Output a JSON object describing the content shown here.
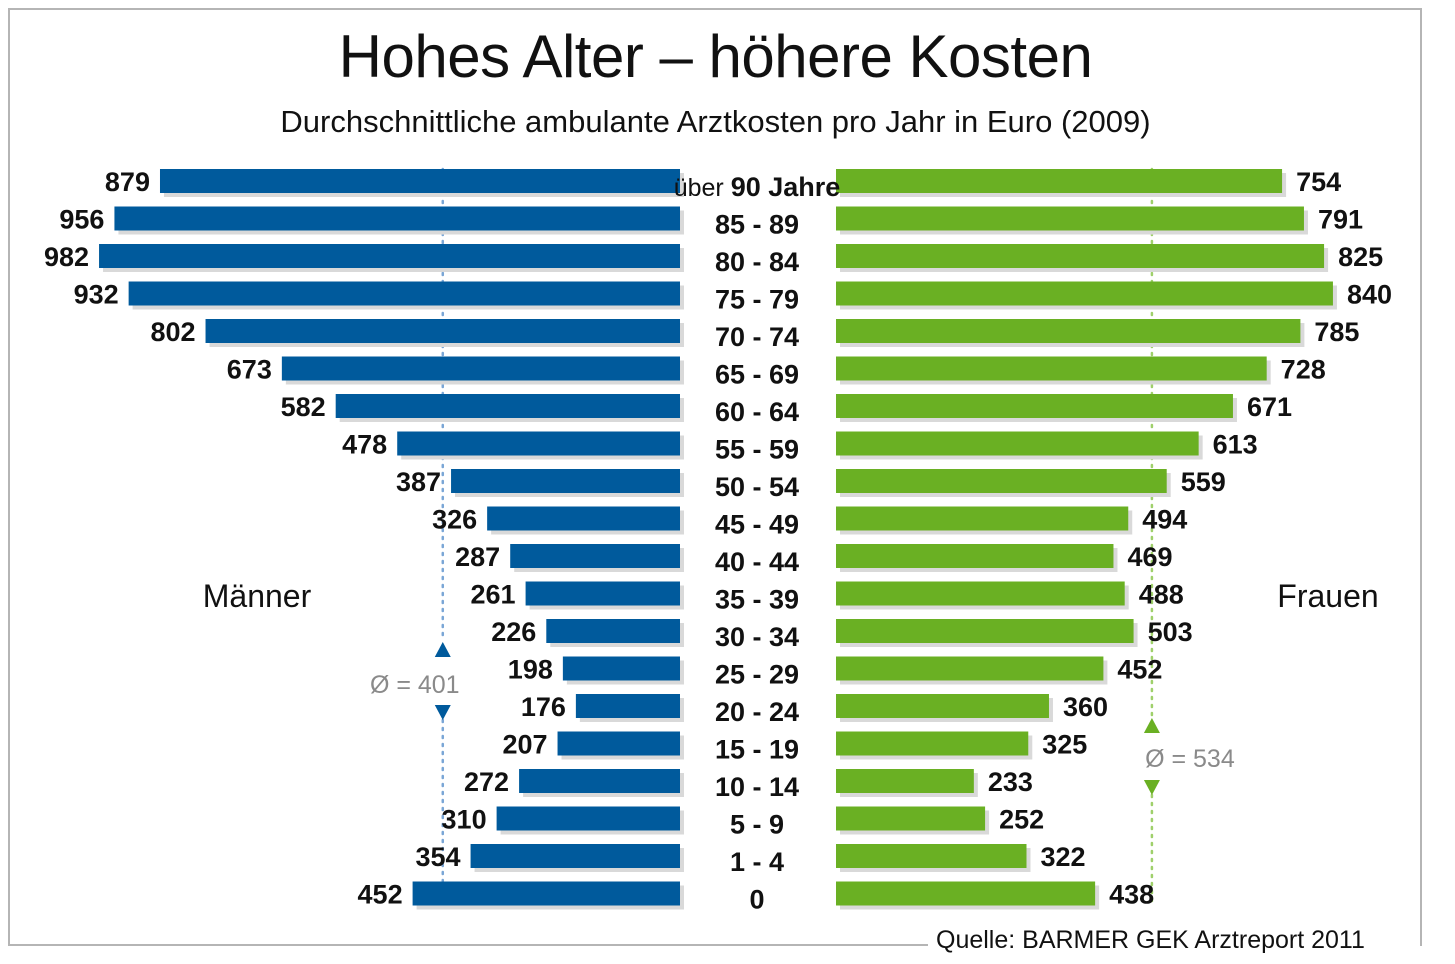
{
  "title": "Hohes Alter – höhere Kosten",
  "subtitle": "Durchschnittliche ambulante Arztkosten pro Jahr in Euro (2009)",
  "source": "Quelle: BARMER GEK Arztreport 2011",
  "colors": {
    "men": "#005a9c",
    "women": "#6ab023",
    "shadow": "#d9d9d9"
  },
  "chart_data": {
    "type": "bar",
    "orientation": "horizontal-population-pyramid",
    "categories": [
      "über 90 Jahre",
      "85 - 89",
      "80 - 84",
      "75 - 79",
      "70 - 74",
      "65 - 69",
      "60 - 64",
      "55 - 59",
      "50 - 54",
      "45 - 49",
      "40 - 44",
      "35 - 39",
      "30 - 34",
      "25 - 29",
      "20 - 24",
      "15 - 19",
      "10 - 14",
      "5 - 9",
      "1 - 4",
      "0"
    ],
    "category_prefix": "über",
    "series": [
      {
        "name": "Männer",
        "side": "left",
        "values": [
          879,
          956,
          982,
          932,
          802,
          673,
          582,
          478,
          387,
          326,
          287,
          261,
          226,
          198,
          176,
          207,
          272,
          310,
          354,
          452
        ],
        "average": 401,
        "average_label": "Ø = 401"
      },
      {
        "name": "Frauen",
        "side": "right",
        "values": [
          754,
          791,
          825,
          840,
          785,
          728,
          671,
          613,
          559,
          494,
          469,
          488,
          503,
          452,
          360,
          325,
          233,
          252,
          322,
          438
        ],
        "average": 534,
        "average_label": "Ø = 534"
      }
    ],
    "xlim": [
      0,
      1000
    ],
    "grid": false,
    "legend": "series names placed beside bars (left and right)"
  }
}
